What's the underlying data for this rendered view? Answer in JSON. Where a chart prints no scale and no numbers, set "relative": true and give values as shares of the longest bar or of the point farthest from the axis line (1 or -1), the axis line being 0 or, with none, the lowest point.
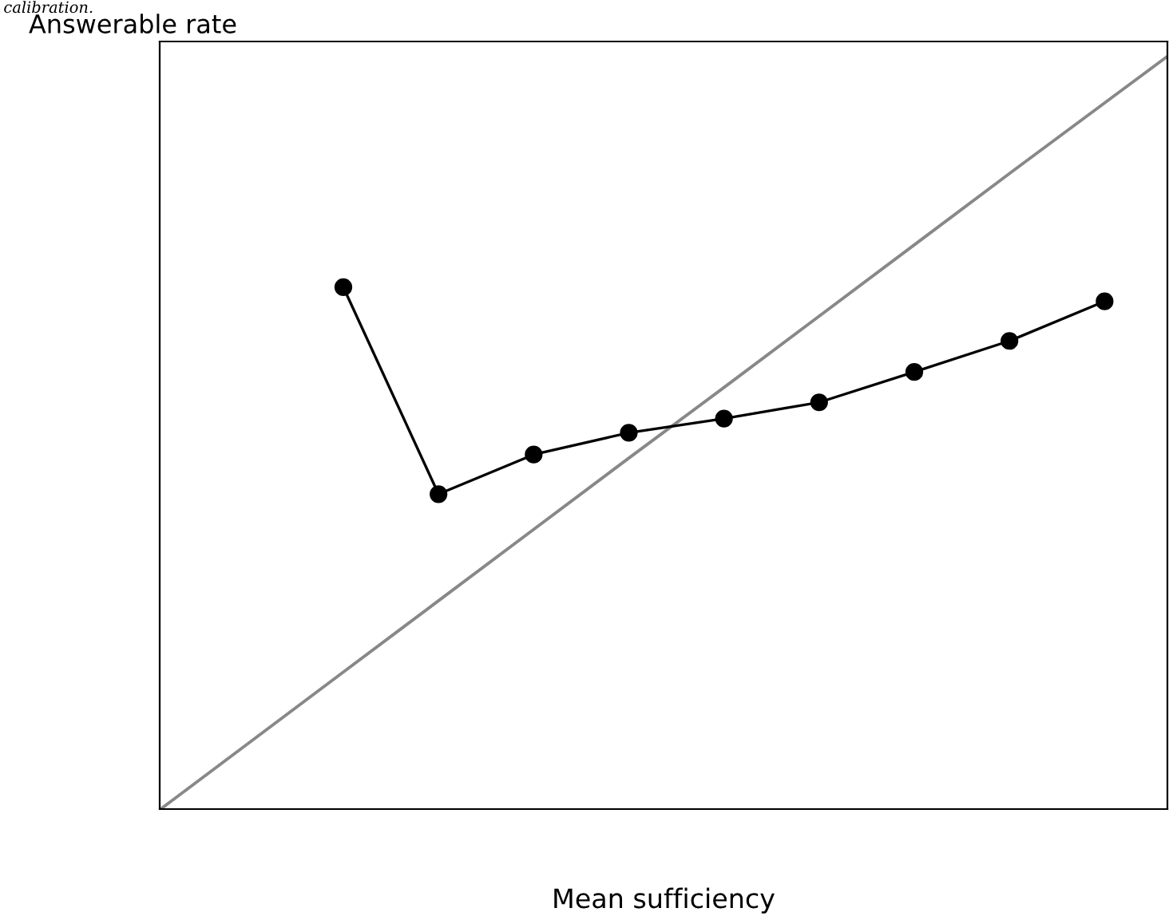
{
  "chart_data": {
    "type": "line",
    "relative": true,
    "xlabel": "Mean sufficiency",
    "ylabel": "Answerable rate",
    "annotations": [
      "calibration."
    ],
    "marker": "circle",
    "categories": [
      null,
      null,
      null,
      null,
      null,
      null,
      null,
      null,
      null
    ],
    "series": [
      {
        "color": "#000000",
        "values": [
          0.739,
          0.446,
          0.502,
          0.533,
          0.553,
          0.576,
          0.619,
          0.663,
          0.719
        ]
      },
      {
        "color": "#888888",
        "marker": "none",
        "values": [
          0.194,
          0.295,
          0.396,
          0.497,
          0.597,
          0.698,
          0.799,
          0.9,
          1
        ]
      }
    ]
  }
}
